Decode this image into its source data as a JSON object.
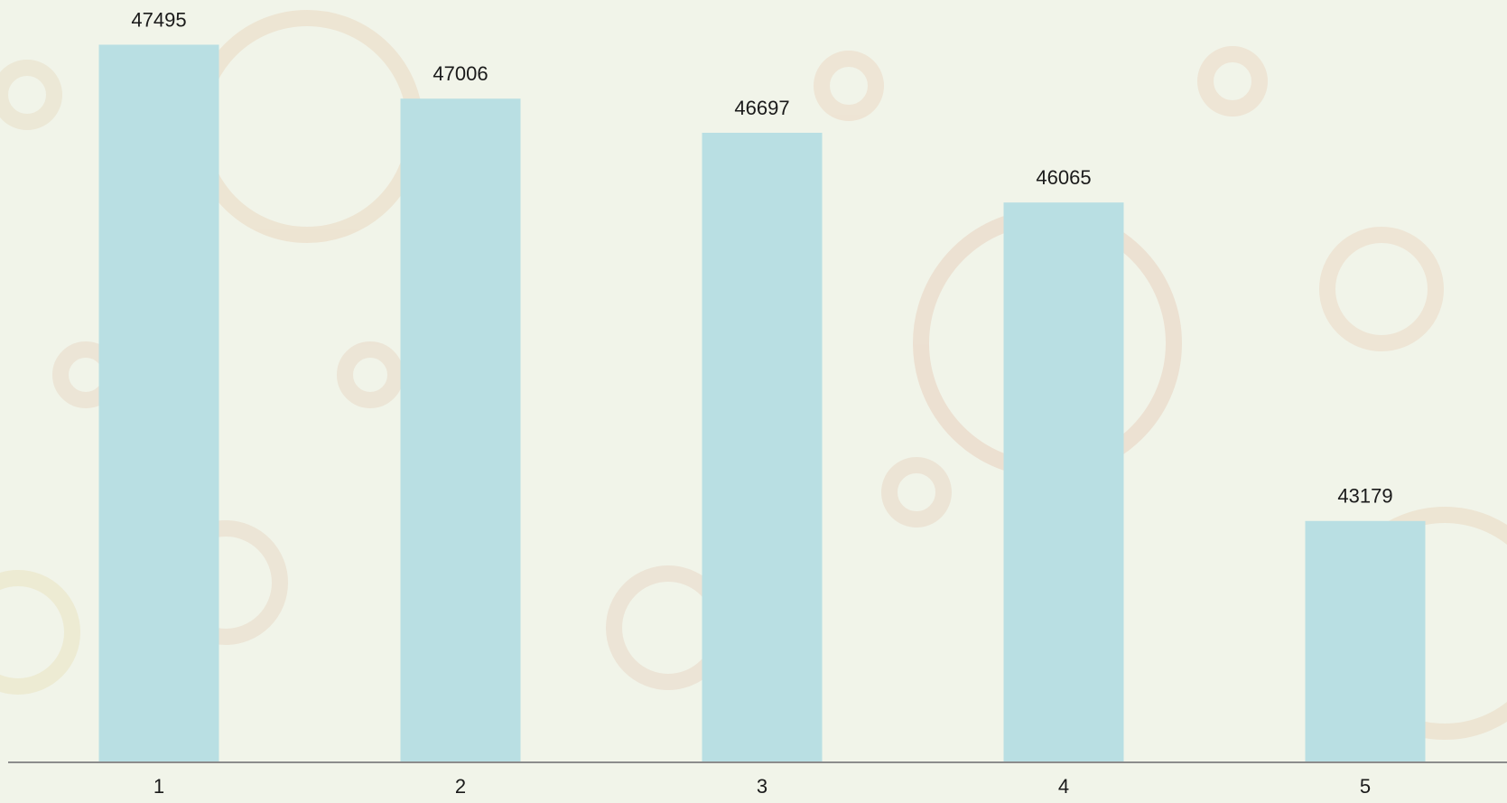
{
  "chart_data": {
    "type": "bar",
    "categories": [
      "1",
      "2",
      "3",
      "4",
      "5"
    ],
    "values": [
      47495,
      47006,
      46697,
      46065,
      43179
    ],
    "color": "#b9dfe3",
    "ylim": [
      41000,
      47900
    ]
  }
}
